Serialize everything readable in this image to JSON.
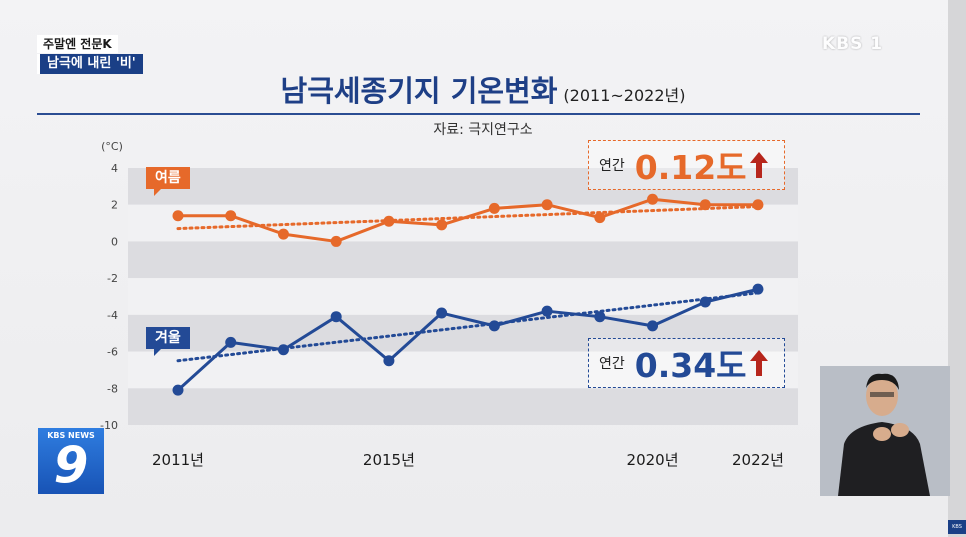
{
  "overlay": {
    "program": "주말엔 전문K",
    "segment": "남극에 내린 '비'",
    "channel_logo": "KBS 1",
    "news_logo_top": "KBS NEWS",
    "news_logo_number": "9",
    "corner_logo": "KBS"
  },
  "colors": {
    "summer": "#e6692a",
    "winter": "#234a96",
    "title": "#1e3f86"
  },
  "chart_data": {
    "type": "line",
    "title": "남극세종기지 기온변화",
    "subtitle": "(2011~2022년)",
    "source": "자료: 극지연구소",
    "unit": "(°C)",
    "ylim": [
      -10,
      4
    ],
    "yticks": [
      4,
      2,
      0,
      -2,
      -4,
      -6,
      -8,
      -10
    ],
    "x": [
      2011,
      2012,
      2013,
      2014,
      2015,
      2016,
      2017,
      2018,
      2019,
      2020,
      2021,
      2022
    ],
    "xtick_labels": [
      {
        "x": 2011,
        "label": "2011년"
      },
      {
        "x": 2015,
        "label": "2015년"
      },
      {
        "x": 2020,
        "label": "2020년"
      },
      {
        "x": 2022,
        "label": "2022년"
      }
    ],
    "series": [
      {
        "name": "여름",
        "values": [
          1.4,
          1.4,
          0.4,
          0.0,
          1.1,
          0.9,
          1.8,
          2.0,
          1.3,
          2.3,
          2.0,
          2.0
        ],
        "trend": [
          0.7,
          1.9
        ]
      },
      {
        "name": "겨울",
        "values": [
          -8.1,
          -5.5,
          -5.9,
          -4.1,
          -6.5,
          -3.9,
          -4.6,
          -3.8,
          -4.1,
          -4.6,
          -3.3,
          -2.6
        ],
        "trend": [
          -6.5,
          -2.8
        ]
      }
    ],
    "annotations": [
      {
        "series": "여름",
        "label": "연간",
        "value": "0.12도"
      },
      {
        "series": "겨울",
        "label": "연간",
        "value": "0.34도"
      }
    ],
    "grid": "horizontal bands",
    "legend": "inline tags"
  }
}
